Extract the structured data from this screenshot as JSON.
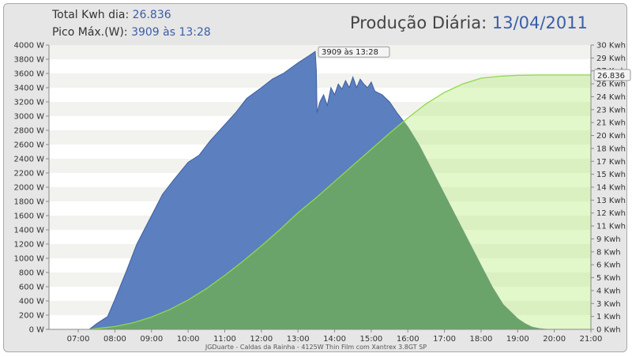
{
  "header": {
    "total_label": "Total Kwh dia:",
    "total_value": "26.836",
    "peak_label": "Pico Máx.(W):",
    "peak_value": "3909 às 13:28",
    "title_label": "Produção Diária:",
    "title_date": "13/04/2011"
  },
  "footer": "JGDuarte  -  Caldas da Rainha  -  4125W Thin Film com Xantrex 3.8GT SP",
  "colors": {
    "power": "#5b7fbf",
    "energy": "#bfee8a",
    "overlap": "#6aa46a",
    "energy_line": "#8fd94c"
  },
  "chart_data": {
    "type": "area",
    "x_ticks": [
      "07:00",
      "08:00",
      "09:00",
      "10:00",
      "11:00",
      "12:00",
      "13:00",
      "14:00",
      "15:00",
      "16:00",
      "17:00",
      "18:00",
      "19:00",
      "20:00",
      "21:00"
    ],
    "y_left_ticks": [
      "0 W",
      "200 W",
      "400 W",
      "600 W",
      "800 W",
      "1000 W",
      "1200 W",
      "1400 W",
      "1600 W",
      "1800 W",
      "2000 W",
      "2200 W",
      "2400 W",
      "2600 W",
      "2800 W",
      "3000 W",
      "3200 W",
      "3400 W",
      "3600 W",
      "3800 W",
      "4000 W"
    ],
    "y_right_ticks": [
      "0 Kwh",
      "1 Kwh",
      "3 Kwh",
      "4 Kwh",
      "5 Kwh",
      "6 Kwh",
      "8 Kwh",
      "9 Kwh",
      "11 Kwh",
      "12 Kwh",
      "13 Kwh",
      "14 Kwh",
      "15 Kwh",
      "17 Kwh",
      "18 Kwh",
      "20 Kwh",
      "21 Kwh",
      "23 Kwh",
      "24 Kwh",
      "26 Kwh",
      "27 Kwh",
      "29 Kwh",
      "30 Kwh"
    ],
    "ylim_left": [
      0,
      4000
    ],
    "ylim_right": [
      0,
      30
    ],
    "xlim": [
      6.2,
      21.0
    ],
    "series": [
      {
        "name": "power",
        "x": [
          7.3,
          7.5,
          7.8,
          8.0,
          8.3,
          8.6,
          9.0,
          9.3,
          9.6,
          10.0,
          10.3,
          10.6,
          11.0,
          11.3,
          11.6,
          12.0,
          12.3,
          12.6,
          13.0,
          13.3,
          13.47,
          13.5,
          13.52,
          13.6,
          13.7,
          13.8,
          13.9,
          14.0,
          14.1,
          14.2,
          14.3,
          14.4,
          14.5,
          14.6,
          14.7,
          14.8,
          14.9,
          15.0,
          15.1,
          15.3,
          15.5,
          15.7,
          16.0,
          16.3,
          16.6,
          17.0,
          17.3,
          17.6,
          18.0,
          18.3,
          18.6,
          19.0,
          19.2,
          19.4,
          19.6,
          19.8
        ],
        "y": [
          0,
          80,
          180,
          420,
          800,
          1200,
          1600,
          1900,
          2100,
          2350,
          2450,
          2650,
          2880,
          3050,
          3250,
          3400,
          3520,
          3600,
          3750,
          3850,
          3909,
          3650,
          3050,
          3200,
          3300,
          3150,
          3400,
          3300,
          3450,
          3380,
          3500,
          3400,
          3550,
          3400,
          3520,
          3450,
          3400,
          3480,
          3350,
          3300,
          3200,
          3050,
          2850,
          2600,
          2300,
          1900,
          1600,
          1300,
          900,
          600,
          350,
          150,
          80,
          30,
          10,
          0
        ]
      },
      {
        "name": "energy",
        "x": [
          7.3,
          8.0,
          8.5,
          9.0,
          9.5,
          10.0,
          10.5,
          11.0,
          11.5,
          12.0,
          12.5,
          13.0,
          13.5,
          14.0,
          14.5,
          15.0,
          15.5,
          16.0,
          16.5,
          17.0,
          17.5,
          18.0,
          18.5,
          19.0,
          19.5,
          20.0,
          21.0
        ],
        "y": [
          0,
          0.3,
          0.7,
          1.3,
          2.1,
          3.1,
          4.3,
          5.7,
          7.2,
          8.8,
          10.5,
          12.3,
          13.9,
          15.6,
          17.3,
          19.0,
          20.7,
          22.3,
          23.8,
          25.0,
          25.9,
          26.5,
          26.7,
          26.8,
          26.836,
          26.836,
          26.836
        ]
      }
    ],
    "peak_annotation": "3909 às 13:28",
    "total_annotation": "26.836"
  }
}
